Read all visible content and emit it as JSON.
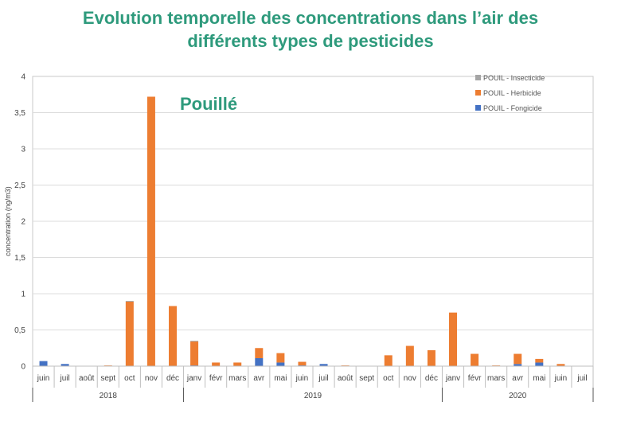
{
  "title": {
    "line1": "Evolution temporelle des concentrations dans l’air des",
    "line2": "différents types de pesticides"
  },
  "chart_data": {
    "type": "bar",
    "stacked": true,
    "annotation": "Pouillé",
    "ylabel": "concentration (ng/m3)",
    "ylim": [
      0,
      4
    ],
    "yticks": [
      "0",
      "0,5",
      "1",
      "1,5",
      "2",
      "2,5",
      "3",
      "3,5",
      "4"
    ],
    "categories": [
      "juin",
      "juil",
      "août",
      "sept",
      "oct",
      "nov",
      "déc",
      "janv",
      "févr",
      "mars",
      "avr",
      "mai",
      "juin",
      "juil",
      "août",
      "sept",
      "oct",
      "nov",
      "déc",
      "janv",
      "févr",
      "mars",
      "avr",
      "mai",
      "juin",
      "juil"
    ],
    "years": [
      {
        "label": "2018",
        "start": 0,
        "end": 6
      },
      {
        "label": "2019",
        "start": 7,
        "end": 18
      },
      {
        "label": "2020",
        "start": 19,
        "end": 25
      }
    ],
    "series": [
      {
        "name": "POUIL - Fongicide",
        "color": "#4472c4",
        "values": [
          0.07,
          0.03,
          0,
          0,
          0,
          0,
          0,
          0.01,
          0,
          0,
          0.11,
          0.05,
          0.01,
          0.03,
          0,
          0,
          0,
          0,
          0,
          0,
          0,
          0,
          0.03,
          0.05,
          0,
          0
        ]
      },
      {
        "name": "POUIL - Herbicide",
        "color": "#ed7d31",
        "values": [
          0,
          0,
          0,
          0.01,
          0.89,
          3.72,
          0.83,
          0.33,
          0.05,
          0.05,
          0.14,
          0.13,
          0.05,
          0,
          0.01,
          0,
          0.15,
          0.28,
          0.22,
          0.74,
          0.17,
          0.01,
          0.14,
          0.05,
          0.03,
          0
        ]
      },
      {
        "name": "POUIL - Insecticide",
        "color": "#a5a5a5",
        "values": [
          0,
          0,
          0,
          0,
          0.01,
          0,
          0,
          0.01,
          0,
          0,
          0,
          0,
          0,
          0,
          0,
          0,
          0,
          0,
          0,
          0,
          0,
          0,
          0,
          0,
          0,
          0
        ]
      }
    ],
    "legend": [
      "POUIL - Insecticide",
      "POUIL - Herbicide",
      "POUIL - Fongicide"
    ],
    "legend_position": "top-right",
    "grid": true
  }
}
